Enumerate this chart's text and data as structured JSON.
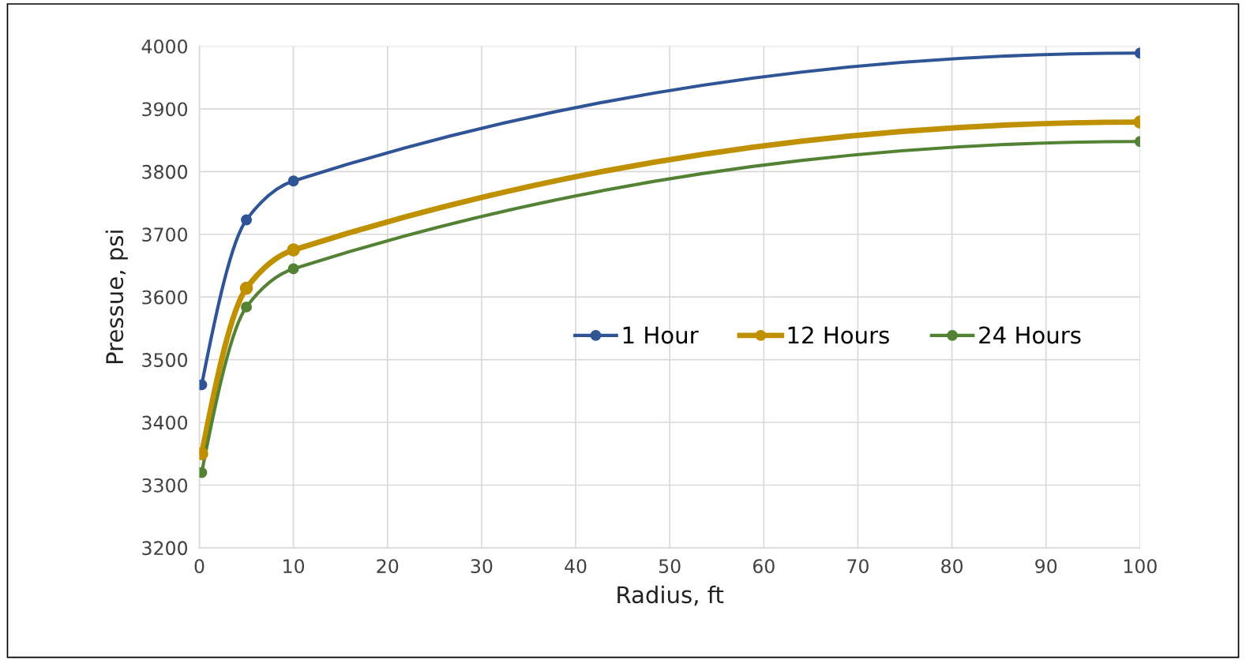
{
  "chart_data": {
    "type": "line",
    "xlabel": "Radius, ft",
    "ylabel": "Pressue, psi",
    "x": [
      0.25,
      5,
      10,
      100
    ],
    "series": [
      {
        "name": "1 Hour",
        "color": "#2f5597",
        "values": [
          3460,
          3723,
          3785,
          3989
        ]
      },
      {
        "name": "12 Hours",
        "color": "#bf9000",
        "values": [
          3350,
          3614,
          3675,
          3879
        ]
      },
      {
        "name": "24 Hours",
        "color": "#548235",
        "values": [
          3320,
          3584,
          3645,
          3848
        ]
      }
    ],
    "xlim": [
      0,
      100
    ],
    "xticks": [
      0,
      10,
      20,
      30,
      40,
      50,
      60,
      70,
      80,
      90,
      100
    ],
    "ylim": [
      3200,
      4000
    ],
    "yticks": [
      3200,
      3300,
      3400,
      3500,
      3600,
      3700,
      3800,
      3900,
      4000
    ],
    "grid": true,
    "legend": "center right",
    "marker": "circle",
    "line_style": "solid"
  }
}
